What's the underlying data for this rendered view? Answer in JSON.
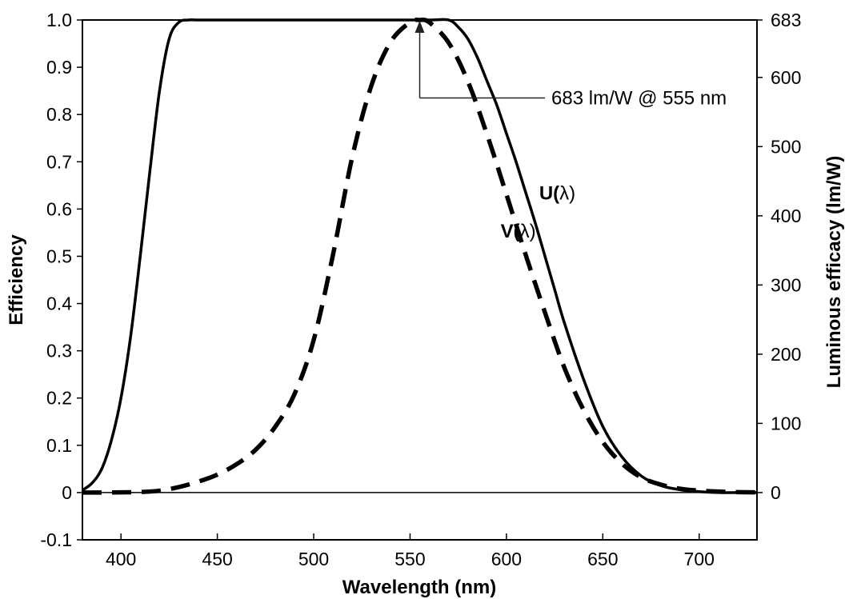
{
  "chart_data": {
    "type": "line",
    "title": "",
    "xlabel": "Wavelength (nm)",
    "ylabel": "Efficiency",
    "y2label": "Luminous efficacy (lm/W)",
    "xlim": [
      380,
      730
    ],
    "ylim": [
      -0.1,
      1.0
    ],
    "y2lim": [
      -68.3,
      683
    ],
    "grid": false,
    "x_ticks": [
      400,
      450,
      500,
      550,
      600,
      650,
      700
    ],
    "x_tick_labels": [
      "400",
      "450",
      "500",
      "550",
      "600",
      "650",
      "700"
    ],
    "y_ticks": [
      -0.1,
      0,
      0.1,
      0.2,
      0.3,
      0.4,
      0.5,
      0.6,
      0.7,
      0.8,
      0.9,
      1.0
    ],
    "y_tick_labels": [
      "-0.1",
      "0",
      "0.1",
      "0.2",
      "0.3",
      "0.4",
      "0.5",
      "0.6",
      "0.7",
      "0.8",
      "0.9",
      "1.0"
    ],
    "y2_ticks": [
      0,
      100,
      200,
      300,
      400,
      500,
      600,
      683
    ],
    "y2_tick_labels": [
      "0",
      "100",
      "200",
      "300",
      "400",
      "500",
      "600",
      "683"
    ],
    "series": [
      {
        "name": "U(λ)",
        "style": "solid",
        "x": [
          380,
          385,
          390,
          395,
          400,
          405,
          410,
          415,
          420,
          425,
          430,
          435,
          440,
          450,
          460,
          480,
          500,
          520,
          540,
          560,
          570,
          575,
          580,
          585,
          590,
          595,
          600,
          605,
          610,
          615,
          620,
          625,
          630,
          640,
          650,
          660,
          670,
          680,
          690,
          700,
          710,
          720,
          730
        ],
        "values": [
          0.005,
          0.02,
          0.05,
          0.11,
          0.2,
          0.33,
          0.5,
          0.68,
          0.85,
          0.96,
          0.995,
          1.0,
          1.0,
          1.0,
          1.0,
          1.0,
          1.0,
          1.0,
          1.0,
          1.0,
          1.0,
          0.985,
          0.96,
          0.92,
          0.87,
          0.82,
          0.76,
          0.7,
          0.635,
          0.57,
          0.5,
          0.43,
          0.36,
          0.24,
          0.14,
          0.075,
          0.035,
          0.015,
          0.006,
          0.002,
          0.0,
          0.0,
          0.0
        ]
      },
      {
        "name": "V(λ)",
        "style": "dashed",
        "x": [
          380,
          400,
          410,
          420,
          430,
          440,
          450,
          460,
          470,
          480,
          490,
          500,
          510,
          520,
          530,
          540,
          550,
          555,
          560,
          570,
          580,
          590,
          600,
          610,
          620,
          630,
          640,
          650,
          660,
          670,
          680,
          690,
          700,
          710,
          720,
          730
        ],
        "values": [
          0.0,
          0.0004,
          0.0012,
          0.004,
          0.0116,
          0.023,
          0.038,
          0.06,
          0.091,
          0.139,
          0.208,
          0.323,
          0.503,
          0.71,
          0.862,
          0.954,
          0.995,
          1.0,
          0.995,
          0.952,
          0.87,
          0.757,
          0.631,
          0.503,
          0.381,
          0.265,
          0.175,
          0.107,
          0.061,
          0.032,
          0.017,
          0.0082,
          0.0041,
          0.0021,
          0.001,
          0.0005
        ]
      }
    ],
    "series_labels": [
      {
        "text": "U(",
        "greek": "λ",
        "close": ")",
        "x": 617,
        "y": 0.62
      },
      {
        "text": "V(",
        "greek": "λ",
        "close": ")",
        "x": 597,
        "y": 0.54
      }
    ],
    "annotation": {
      "text": "683 lm/W @ 555 nm",
      "point_x": 555,
      "point_y": 1.0,
      "elbow_y": 0.835,
      "line_end_x": 620
    }
  }
}
